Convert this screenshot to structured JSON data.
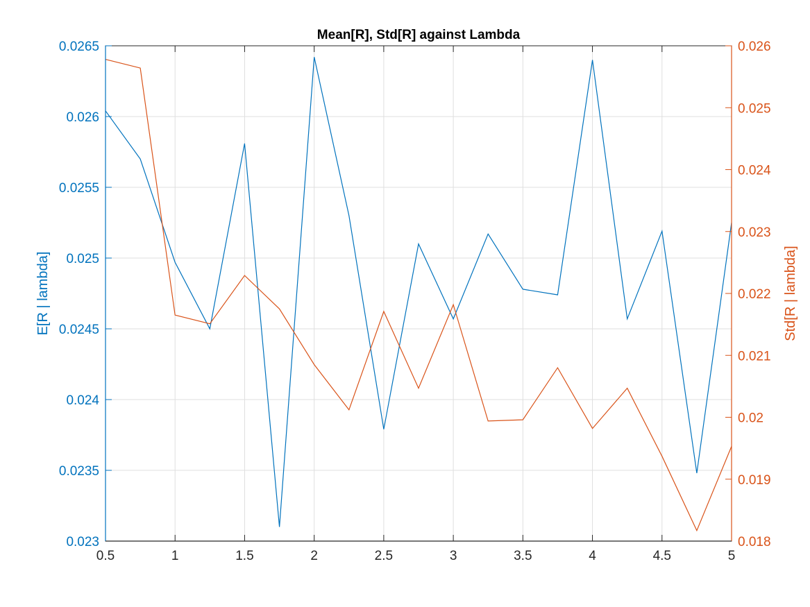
{
  "colors": {
    "left": "#0072BD",
    "right": "#D95319",
    "axis": "#262626",
    "grid": "#DFDFDF"
  },
  "chart_data": {
    "type": "line",
    "title": "Mean[R], Std[R] against Lambda",
    "xlabel": "",
    "xlim": [
      0.5,
      5
    ],
    "x": [
      0.5,
      0.75,
      1,
      1.25,
      1.5,
      1.75,
      2,
      2.25,
      2.5,
      2.75,
      3,
      3.25,
      3.5,
      3.75,
      4,
      4.25,
      4.5,
      4.75,
      5
    ],
    "xticks": [
      "0.5",
      "1",
      "1.5",
      "2",
      "2.5",
      "3",
      "3.5",
      "4",
      "4.5",
      "5"
    ],
    "grid": true,
    "left_axis": {
      "label": "E[R | lambda]",
      "ylim": [
        0.023,
        0.0265
      ],
      "ticks": [
        "0.023",
        "0.0235",
        "0.024",
        "0.0245",
        "0.025",
        "0.0255",
        "0.026",
        "0.0265"
      ]
    },
    "right_axis": {
      "label": "Std[R | lambda]",
      "ylim": [
        0.018,
        0.026
      ],
      "ticks": [
        "0.018",
        "0.019",
        "0.02",
        "0.021",
        "0.022",
        "0.023",
        "0.024",
        "0.025",
        "0.026"
      ]
    },
    "series": [
      {
        "axis": "left",
        "values": [
          0.02604,
          0.0257,
          0.02497,
          0.0245,
          0.02581,
          0.0231,
          0.02642,
          0.0253,
          0.02379,
          0.0251,
          0.02457,
          0.02517,
          0.02478,
          0.02474,
          0.0264,
          0.02457,
          0.02519,
          0.02348,
          0.02525
        ]
      },
      {
        "axis": "right",
        "values": [
          0.02578,
          0.02564,
          0.02165,
          0.02151,
          0.02229,
          0.02175,
          0.02085,
          0.02012,
          0.02171,
          0.02047,
          0.02182,
          0.01994,
          0.01996,
          0.0208,
          0.01982,
          0.02047,
          0.01937,
          0.01817,
          0.01953
        ]
      }
    ]
  }
}
